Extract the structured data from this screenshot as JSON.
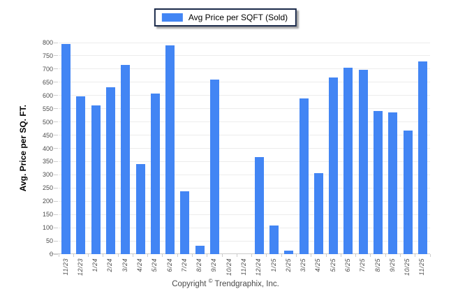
{
  "legend": {
    "label": "Avg Price per SQFT (Sold)",
    "swatch_color": "#4285f4",
    "border_color": "#1b2a4a"
  },
  "yaxis": {
    "title": "Avg. Price per SQ. FT."
  },
  "copyright": {
    "prefix": "Copyright",
    "symbol": "©",
    "suffix": "Trendgraphix, Inc."
  },
  "chart_data": {
    "type": "bar",
    "title": "",
    "legend_entries": [
      "Avg Price per SQFT (Sold)"
    ],
    "legend_position": "top-center",
    "categories": [
      "11/23",
      "12/23",
      "1/24",
      "2/24",
      "3/24",
      "4/24",
      "5/24",
      "6/24",
      "7/24",
      "8/24",
      "9/24",
      "10/24",
      "11/24",
      "12/24",
      "1/25",
      "2/25",
      "3/25",
      "4/25",
      "5/25",
      "6/25",
      "7/25",
      "8/25",
      "9/25",
      "10/25",
      "11/25"
    ],
    "values": [
      795,
      597,
      562,
      630,
      715,
      341,
      608,
      790,
      237,
      32,
      660,
      0,
      0,
      367,
      107,
      14,
      590,
      305,
      668,
      705,
      697,
      542,
      536,
      467,
      730
    ],
    "xlabel": "",
    "ylabel": "Avg. Price per SQ. FT.",
    "ylim": [
      0,
      800
    ],
    "ytick_step": 50,
    "yticks": [
      0,
      50,
      100,
      150,
      200,
      250,
      300,
      350,
      400,
      450,
      500,
      550,
      600,
      650,
      700,
      750,
      800
    ],
    "grid": "horizontal",
    "bar_color": "#4285f4",
    "gridline_color": "#ececec",
    "axis_line_color": "#cccccc",
    "tick_label_color": "#4d4d4d"
  }
}
